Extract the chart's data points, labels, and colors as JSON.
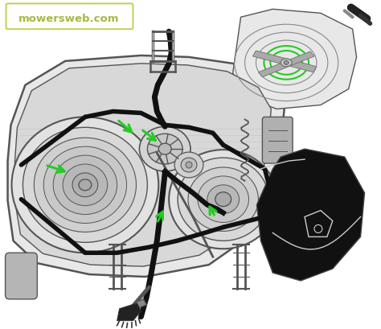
{
  "bg_color": "#ffffff",
  "watermark_text": "mowersweb.com",
  "watermark_color": "#a8b840",
  "watermark_box_color": "#c8d060",
  "dc": "#555555",
  "bc": "#111111",
  "gc": "#22cc22",
  "figsize": [
    4.74,
    4.09
  ],
  "dpi": 100
}
